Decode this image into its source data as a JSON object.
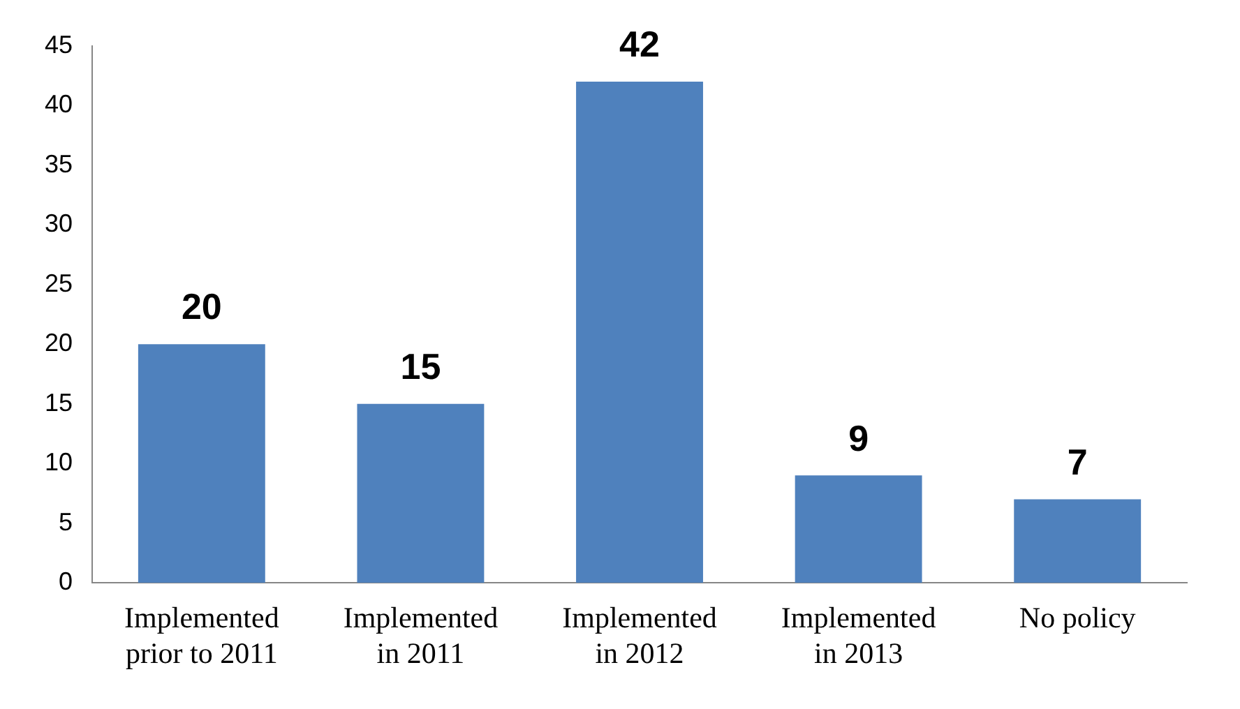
{
  "chart_data": {
    "type": "bar",
    "categories": [
      "Implemented prior to 2011",
      "Implemented in 2011",
      "Implemented in 2012",
      "Implemented in 2013",
      "No policy"
    ],
    "values": [
      20,
      15,
      42,
      9,
      7
    ],
    "color": "#4f81bd",
    "ylim": [
      0,
      45
    ],
    "yticks": [
      0,
      5,
      10,
      15,
      20,
      25,
      30,
      35,
      40,
      45
    ],
    "grid": false,
    "legend": false,
    "data_labels": true
  }
}
